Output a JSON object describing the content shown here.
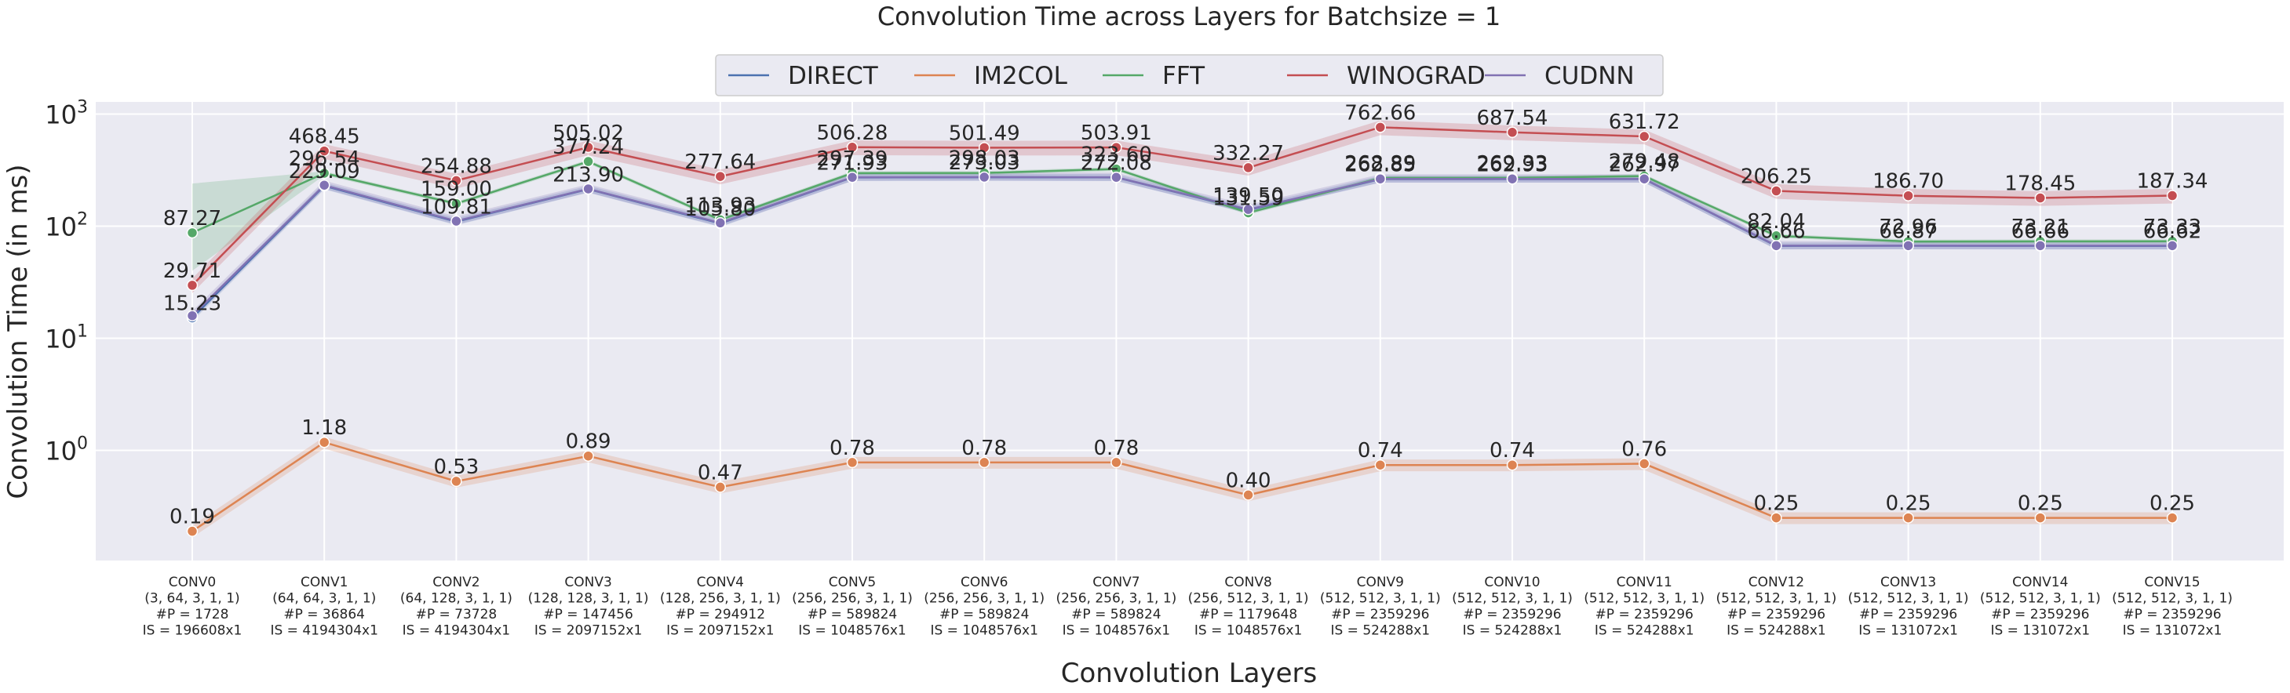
{
  "chart_data": {
    "type": "line",
    "title": "Convolution Time across Layers for Batchsize = 1",
    "xlabel": "Convolution Layers",
    "ylabel": "Convolution Time (in ms)",
    "yscale": "log",
    "ylim": [
      0.1,
      1200
    ],
    "yticks": [
      "10^0",
      "10^1",
      "10^2",
      "10^3"
    ],
    "grid": true,
    "legend_position": "top-center",
    "categories": [
      "CONV0",
      "CONV1",
      "CONV2",
      "CONV3",
      "CONV4",
      "CONV5",
      "CONV6",
      "CONV7",
      "CONV8",
      "CONV9",
      "CONV10",
      "CONV11",
      "CONV12",
      "CONV13",
      "CONV14",
      "CONV15"
    ],
    "category_details": [
      [
        "(3, 64, 3, 1, 1)",
        "#P = 1728",
        "IS = 196608x1"
      ],
      [
        "(64, 64, 3, 1, 1)",
        "#P = 36864",
        "IS = 4194304x1"
      ],
      [
        "(64, 128, 3, 1, 1)",
        "#P = 73728",
        "IS = 4194304x1"
      ],
      [
        "(128, 128, 3, 1, 1)",
        "#P = 147456",
        "IS = 2097152x1"
      ],
      [
        "(128, 256, 3, 1, 1)",
        "#P = 294912",
        "IS = 2097152x1"
      ],
      [
        "(256, 256, 3, 1, 1)",
        "#P = 589824",
        "IS = 1048576x1"
      ],
      [
        "(256, 256, 3, 1, 1)",
        "#P = 589824",
        "IS = 1048576x1"
      ],
      [
        "(256, 256, 3, 1, 1)",
        "#P = 589824",
        "IS = 1048576x1"
      ],
      [
        "(256, 512, 3, 1, 1)",
        "#P = 1179648",
        "IS = 1048576x1"
      ],
      [
        "(512, 512, 3, 1, 1)",
        "#P = 2359296",
        "IS = 524288x1"
      ],
      [
        "(512, 512, 3, 1, 1)",
        "#P = 2359296",
        "IS = 524288x1"
      ],
      [
        "(512, 512, 3, 1, 1)",
        "#P = 2359296",
        "IS = 524288x1"
      ],
      [
        "(512, 512, 3, 1, 1)",
        "#P = 2359296",
        "IS = 524288x1"
      ],
      [
        "(512, 512, 3, 1, 1)",
        "#P = 2359296",
        "IS = 131072x1"
      ],
      [
        "(512, 512, 3, 1, 1)",
        "#P = 2359296",
        "IS = 131072x1"
      ],
      [
        "(512, 512, 3, 1, 1)",
        "#P = 2359296",
        "IS = 131072x1"
      ]
    ],
    "series": [
      {
        "name": "DIRECT",
        "color": "#4c72b0",
        "values": [
          15.23,
          229.09,
          109.81,
          213.9,
          105.8,
          271.93,
          273.03,
          272.08,
          139.5,
          262.85,
          262.93,
          262.97,
          66.66,
          66.87,
          66.66,
          66.62
        ],
        "labels": [
          "15.23",
          "229.09",
          "109.81",
          "213.90",
          "105.80",
          "271.93",
          "273.03",
          "272.08",
          "139.50",
          "262.85",
          "262.93",
          "262.97",
          "66.66",
          "66.87",
          "66.66",
          "66.62"
        ]
      },
      {
        "name": "IM2COL",
        "color": "#dd8452",
        "values": [
          0.19,
          1.18,
          0.53,
          0.89,
          0.47,
          0.78,
          0.78,
          0.78,
          0.4,
          0.74,
          0.74,
          0.76,
          0.25,
          0.25,
          0.25,
          0.25
        ],
        "labels": [
          "0.19",
          "1.18",
          "0.53",
          "0.89",
          "0.47",
          "0.78",
          "0.78",
          "0.78",
          "0.40",
          "0.74",
          "0.74",
          "0.76",
          "0.25",
          "0.25",
          "0.25",
          "0.25"
        ]
      },
      {
        "name": "FFT",
        "color": "#55a868",
        "values": [
          87.27,
          296.54,
          159.0,
          377.24,
          113.93,
          297.39,
          298.03,
          323.6,
          131.59,
          268.89,
          269.33,
          279.48,
          82.04,
          72.96,
          73.21,
          73.33
        ],
        "labels": [
          "87.27",
          "296.54",
          "159.00",
          "377.24",
          "113.93",
          "297.39",
          "298.03",
          "323.60",
          "131.59",
          "268.89",
          "269.33",
          "279.48",
          "82.04",
          "72.96",
          "73.21",
          "73.33"
        ]
      },
      {
        "name": "WINOGRAD",
        "color": "#c44e52",
        "values": [
          29.71,
          468.45,
          254.88,
          505.02,
          277.64,
          506.28,
          501.49,
          503.91,
          332.27,
          762.66,
          687.54,
          631.72,
          206.25,
          186.7,
          178.45,
          187.34
        ],
        "labels": [
          "29.71",
          "468.45",
          "254.88",
          "505.02",
          "277.64",
          "506.28",
          "501.49",
          "503.91",
          "332.27",
          "762.66",
          "687.54",
          "631.72",
          "206.25",
          "186.70",
          "178.45",
          "187.34"
        ]
      },
      {
        "name": "CUDNN",
        "color": "#8172b3",
        "values": [
          15.9,
          232,
          111,
          215,
          107,
          273,
          274,
          273,
          141,
          264,
          264,
          264,
          67,
          67,
          67,
          67
        ],
        "labels": []
      }
    ]
  }
}
